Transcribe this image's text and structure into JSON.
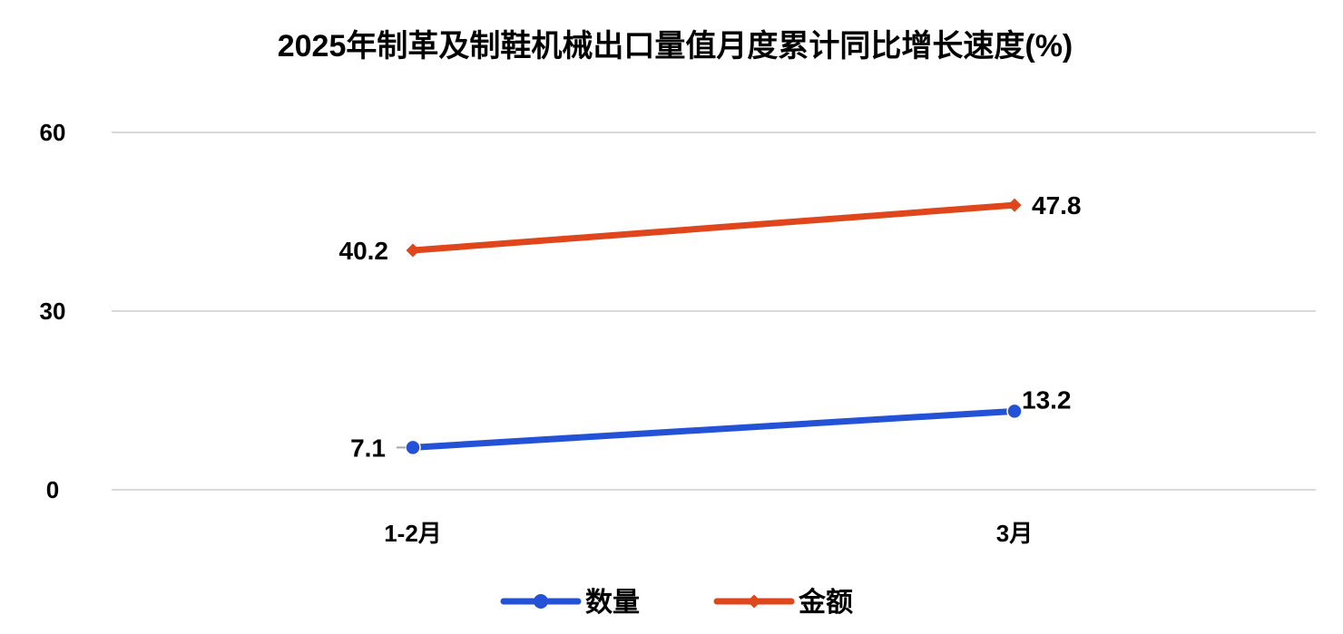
{
  "chart_data": {
    "type": "line",
    "title": "2025年制革及制鞋机械出口量值月度累计同比增长速度(%)",
    "categories": [
      "1-2月",
      "3月"
    ],
    "ylim": [
      0,
      60
    ],
    "yticks": [
      0,
      30,
      60
    ],
    "grid": true,
    "legend_position": "bottom",
    "series": [
      {
        "name": "数量",
        "values": [
          7.1,
          13.2
        ],
        "labels": [
          "7.1",
          "13.2"
        ],
        "color": "#2452d6",
        "marker": "circle"
      },
      {
        "name": "金额",
        "values": [
          40.2,
          47.8
        ],
        "labels": [
          "40.2",
          "47.8"
        ],
        "color": "#e0461b",
        "marker": "diamond"
      }
    ]
  }
}
